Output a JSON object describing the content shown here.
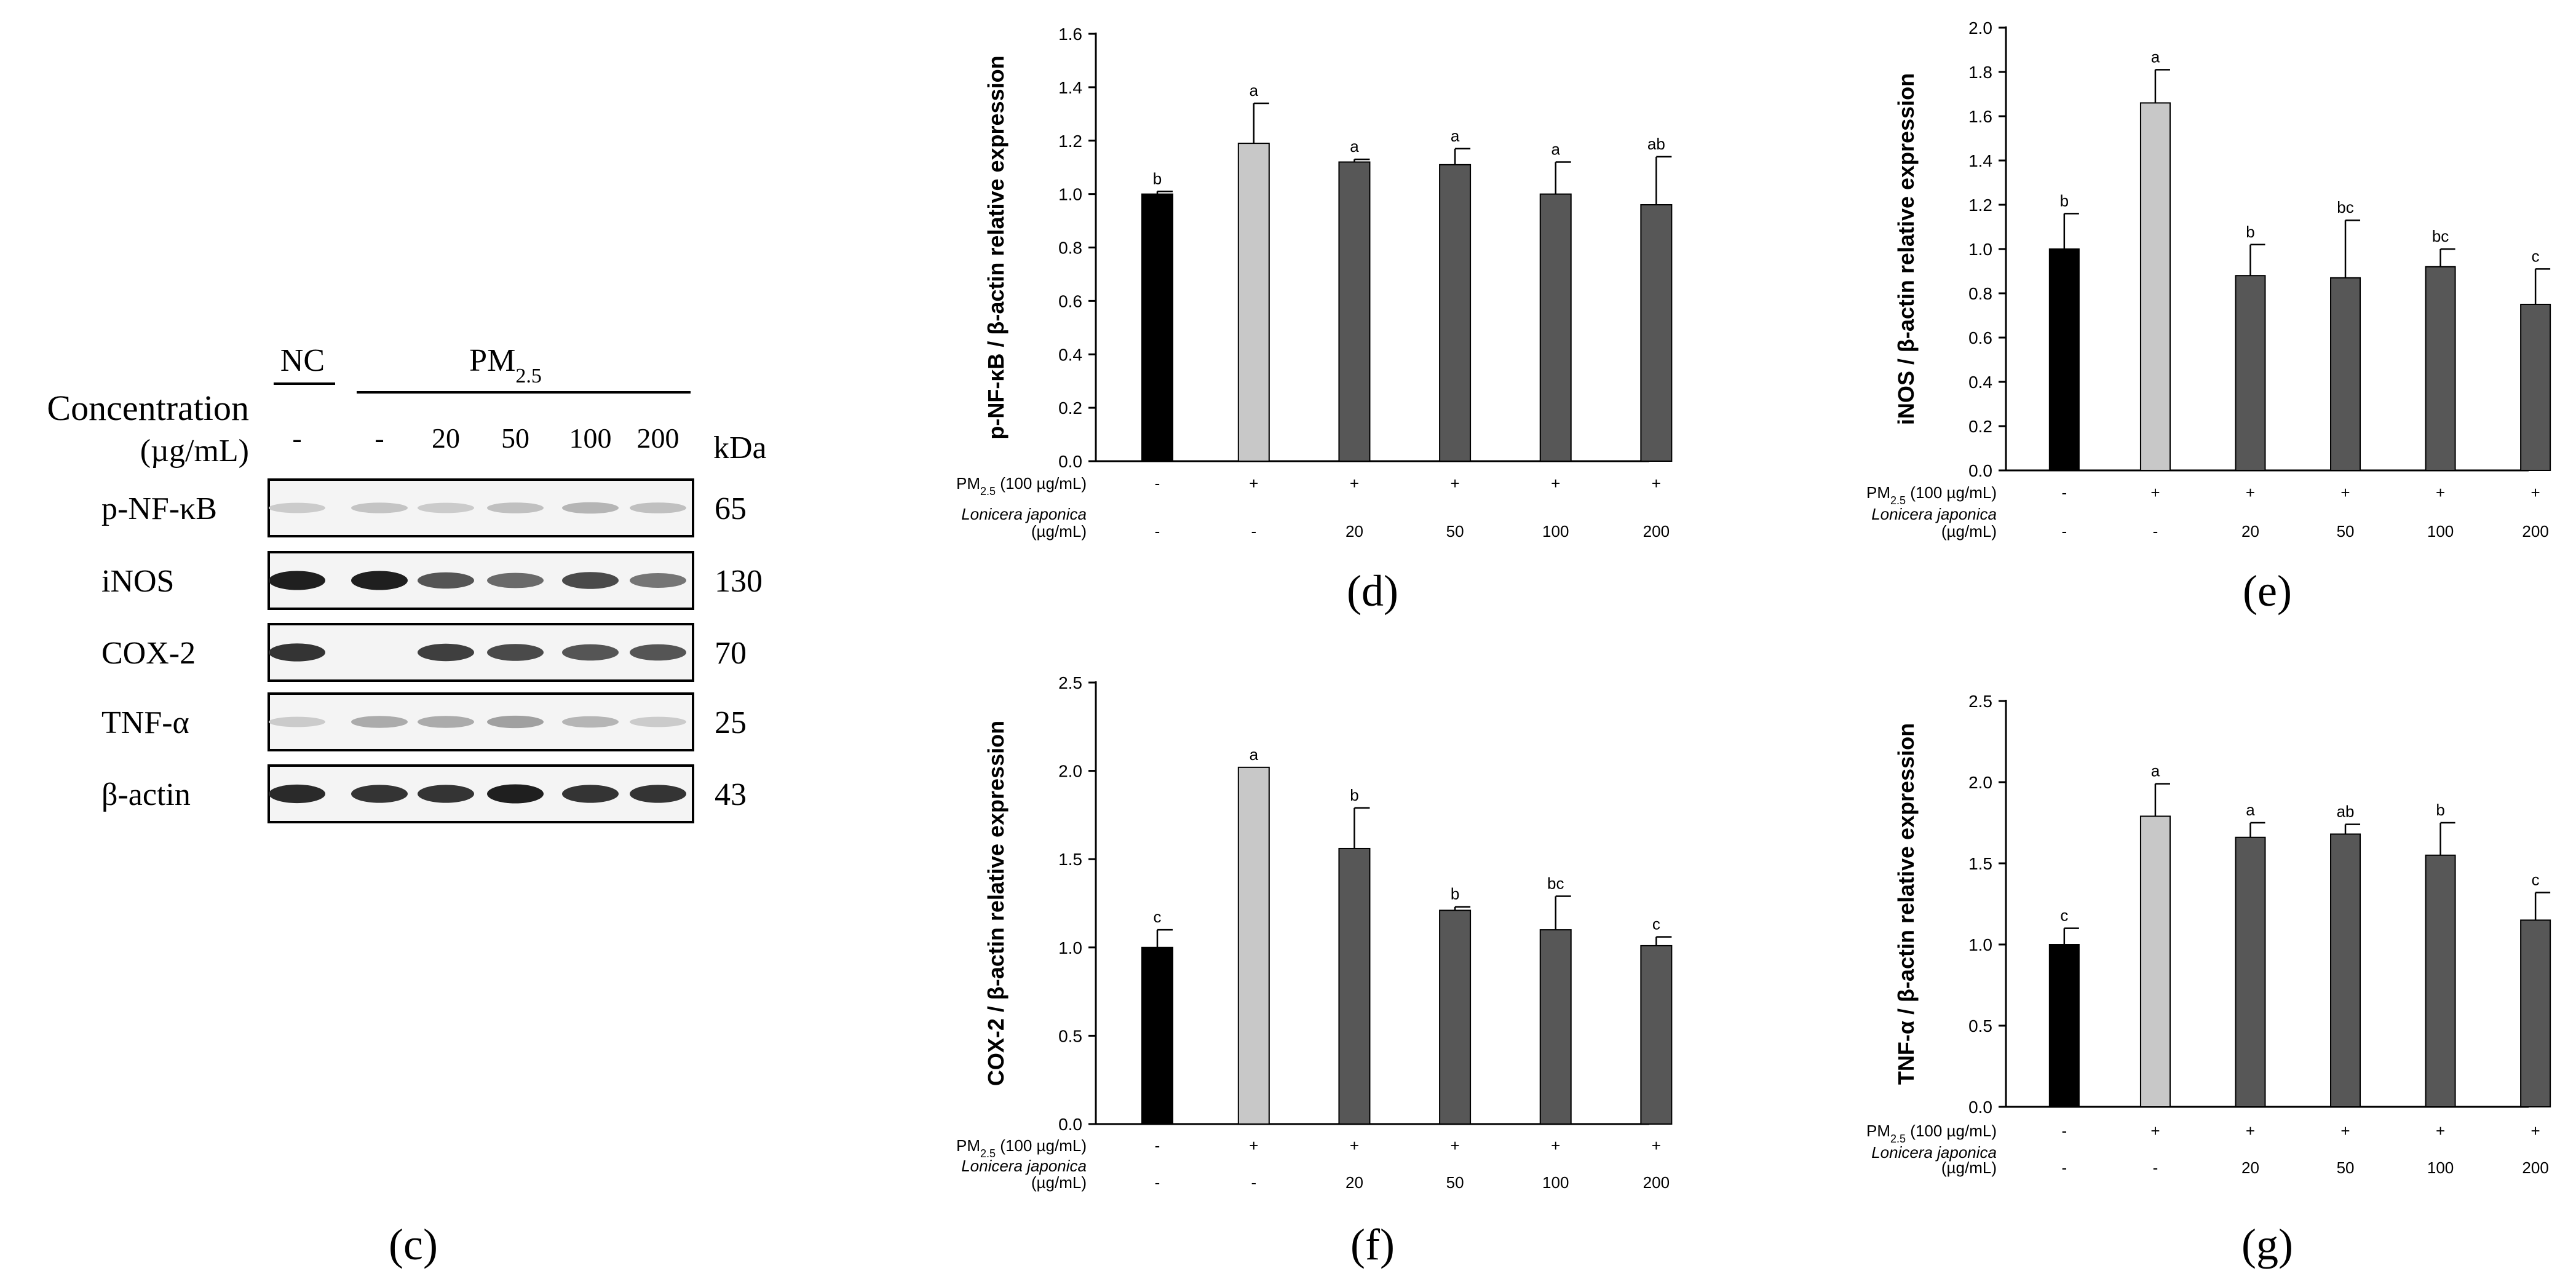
{
  "blot": {
    "panel_label": "(c)",
    "nc_label": "NC",
    "pm_label": "PM",
    "pm_sub": "2.5",
    "concentration_label": "Concentration",
    "unit_label": "(µg/mL)",
    "kda_label": "kDa",
    "lane_labels": [
      "-",
      "-",
      "20",
      "50",
      "100",
      "200"
    ],
    "rows": [
      {
        "name": "p-NF-κB",
        "kda": "65"
      },
      {
        "name": "iNOS",
        "kda": "130"
      },
      {
        "name": "COX-2",
        "kda": "70"
      },
      {
        "name": "TNF-α",
        "kda": "25"
      },
      {
        "name": "β-actin",
        "kda": "43"
      }
    ],
    "band_intensity": [
      [
        0.15,
        0.18,
        0.15,
        0.2,
        0.25,
        0.2
      ],
      [
        0.95,
        0.95,
        0.7,
        0.6,
        0.75,
        0.55
      ],
      [
        0.85,
        0.0,
        0.8,
        0.75,
        0.7,
        0.7
      ],
      [
        0.15,
        0.3,
        0.3,
        0.35,
        0.25,
        0.15
      ],
      [
        0.9,
        0.85,
        0.85,
        0.95,
        0.85,
        0.85
      ]
    ]
  },
  "x_axis_rows": {
    "pm_text": "PM",
    "pm_sub": "2.5",
    "pm_rest": " (100 µg/mL)",
    "plant_name": "Lonicera japonica",
    "plant_unit": "(µg/mL)",
    "pm_signs": [
      "-",
      "+",
      "+",
      "+",
      "+",
      "+"
    ],
    "conc_values": [
      "-",
      "-",
      "20",
      "50",
      "100",
      "200"
    ]
  },
  "colors": {
    "nc_bar": "#000000",
    "pm_bar": "#c8c8c8",
    "treated_bar": "#575757"
  },
  "chart_data": [
    {
      "id": "d",
      "panel_label": "(d)",
      "type": "bar",
      "ylabel": "p-NF-κB / β-actin relative expression",
      "ylim": [
        0,
        1.6
      ],
      "yticks": [
        "0.0",
        "0.2",
        "0.4",
        "0.6",
        "0.8",
        "1.0",
        "1.2",
        "1.4",
        "1.6"
      ],
      "values": [
        1.0,
        1.19,
        1.12,
        1.11,
        1.0,
        0.96
      ],
      "errors": [
        0.01,
        0.15,
        0.01,
        0.06,
        0.12,
        0.18
      ],
      "letters": [
        "b",
        "a",
        "a",
        "a",
        "a",
        "ab"
      ]
    },
    {
      "id": "e",
      "panel_label": "(e)",
      "type": "bar",
      "ylabel": "iNOS / β-actin relative expression",
      "ylim": [
        0,
        2.0
      ],
      "yticks": [
        "0.0",
        "0.2",
        "0.4",
        "0.6",
        "0.8",
        "1.0",
        "1.2",
        "1.4",
        "1.6",
        "1.8",
        "2.0"
      ],
      "values": [
        1.0,
        1.66,
        0.88,
        0.87,
        0.92,
        0.75
      ],
      "errors": [
        0.16,
        0.15,
        0.14,
        0.26,
        0.08,
        0.16
      ],
      "letters": [
        "b",
        "a",
        "b",
        "bc",
        "bc",
        "c"
      ]
    },
    {
      "id": "f",
      "panel_label": "(f)",
      "type": "bar",
      "ylabel": "COX-2 / β-actin relative expression",
      "ylim": [
        0,
        2.5
      ],
      "yticks": [
        "0.0",
        "0.5",
        "1.0",
        "1.5",
        "2.0",
        "2.5"
      ],
      "values": [
        1.0,
        2.02,
        1.56,
        1.21,
        1.1,
        1.01
      ],
      "errors": [
        0.1,
        0.0,
        0.23,
        0.02,
        0.19,
        0.05
      ],
      "letters": [
        "c",
        "a",
        "b",
        "b",
        "bc",
        "c"
      ]
    },
    {
      "id": "g",
      "panel_label": "(g)",
      "type": "bar",
      "ylabel": "TNF-α / β-actin relative expression",
      "ylim": [
        0,
        2.5
      ],
      "yticks": [
        "0.0",
        "0.5",
        "1.0",
        "1.5",
        "2.0",
        "2.5"
      ],
      "values": [
        1.0,
        1.79,
        1.66,
        1.68,
        1.55,
        1.15
      ],
      "errors": [
        0.1,
        0.2,
        0.09,
        0.06,
        0.2,
        0.17
      ],
      "letters": [
        "c",
        "a",
        "a",
        "ab",
        "b",
        "c"
      ]
    }
  ]
}
